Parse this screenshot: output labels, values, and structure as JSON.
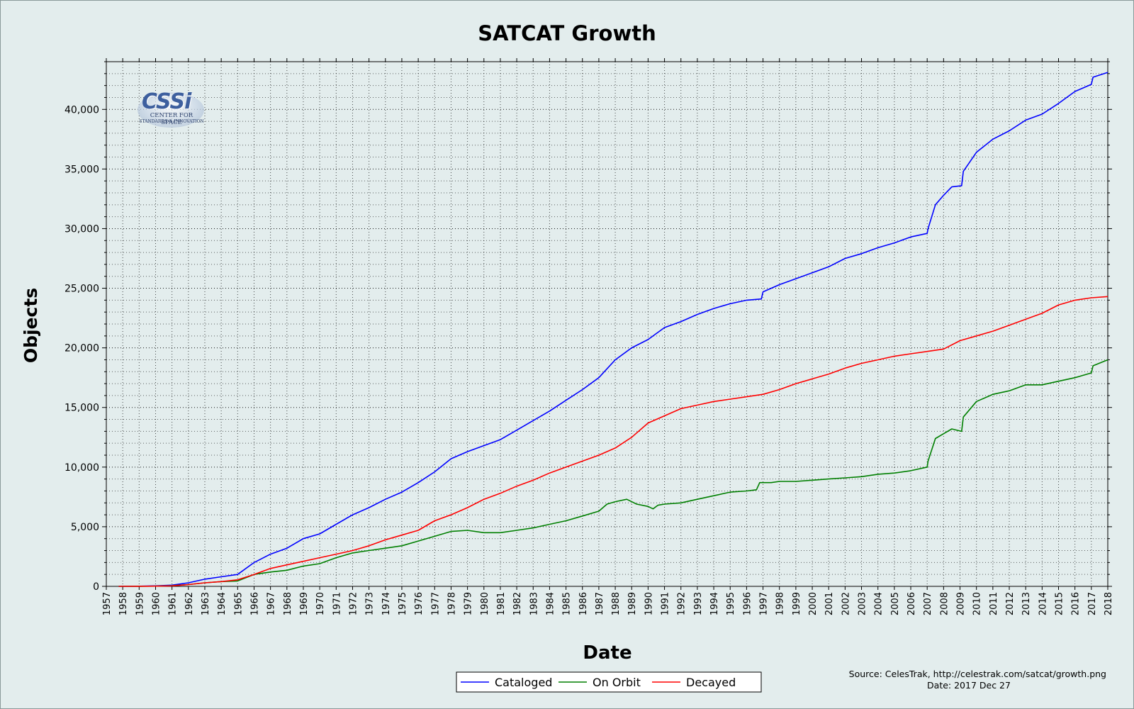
{
  "chart_data": {
    "type": "line",
    "title": "SATCAT Growth",
    "xlabel": "Date",
    "ylabel": "Objects",
    "xlim": [
      1957,
      2018
    ],
    "ylim": [
      0,
      44000
    ],
    "x_ticks": [
      1957,
      1958,
      1959,
      1960,
      1961,
      1962,
      1963,
      1964,
      1965,
      1966,
      1967,
      1968,
      1969,
      1970,
      1971,
      1972,
      1973,
      1974,
      1975,
      1976,
      1977,
      1978,
      1979,
      1980,
      1981,
      1982,
      1983,
      1984,
      1985,
      1986,
      1987,
      1988,
      1989,
      1990,
      1991,
      1992,
      1993,
      1994,
      1995,
      1996,
      1997,
      1998,
      1999,
      2000,
      2001,
      2002,
      2003,
      2004,
      2005,
      2006,
      2007,
      2008,
      2009,
      2010,
      2011,
      2012,
      2013,
      2014,
      2015,
      2016,
      2017,
      2018
    ],
    "y_ticks": [
      0,
      5000,
      10000,
      15000,
      20000,
      25000,
      30000,
      35000,
      40000
    ],
    "y_tick_labels": [
      "0",
      "5,000",
      "10,000",
      "15,000",
      "20,000",
      "25,000",
      "30,000",
      "35,000",
      "40,000"
    ],
    "grid": true,
    "legend_position": "bottom-center",
    "series": [
      {
        "name": "Cataloged",
        "color": "#0000ff",
        "points": [
          [
            1957.75,
            2
          ],
          [
            1959,
            10
          ],
          [
            1960,
            40
          ],
          [
            1961,
            100
          ],
          [
            1962,
            300
          ],
          [
            1963,
            600
          ],
          [
            1964,
            800
          ],
          [
            1965,
            1000
          ],
          [
            1966,
            2000
          ],
          [
            1967,
            2700
          ],
          [
            1968,
            3200
          ],
          [
            1969,
            4000
          ],
          [
            1970,
            4400
          ],
          [
            1971,
            5200
          ],
          [
            1972,
            6000
          ],
          [
            1973,
            6600
          ],
          [
            1974,
            7300
          ],
          [
            1975,
            7900
          ],
          [
            1976,
            8700
          ],
          [
            1977,
            9600
          ],
          [
            1978,
            10700
          ],
          [
            1979,
            11300
          ],
          [
            1980,
            11800
          ],
          [
            1981,
            12300
          ],
          [
            1982,
            13100
          ],
          [
            1983,
            13900
          ],
          [
            1984,
            14700
          ],
          [
            1985,
            15600
          ],
          [
            1986,
            16500
          ],
          [
            1987,
            17500
          ],
          [
            1988,
            19000
          ],
          [
            1989,
            20000
          ],
          [
            1990,
            20700
          ],
          [
            1991,
            21700
          ],
          [
            1992,
            22200
          ],
          [
            1993,
            22800
          ],
          [
            1994,
            23300
          ],
          [
            1995,
            23700
          ],
          [
            1996,
            24000
          ],
          [
            1996.9,
            24100
          ],
          [
            1997.0,
            24700
          ],
          [
            1998,
            25300
          ],
          [
            1999,
            25800
          ],
          [
            2000,
            26300
          ],
          [
            2001,
            26800
          ],
          [
            2002,
            27500
          ],
          [
            2003,
            27900
          ],
          [
            2004,
            28400
          ],
          [
            2005,
            28800
          ],
          [
            2006,
            29300
          ],
          [
            2007.0,
            29600
          ],
          [
            2007.05,
            30000
          ],
          [
            2007.5,
            32000
          ],
          [
            2008,
            32800
          ],
          [
            2008.5,
            33500
          ],
          [
            2009.1,
            33600
          ],
          [
            2009.2,
            34800
          ],
          [
            2010,
            36400
          ],
          [
            2011,
            37500
          ],
          [
            2012,
            38200
          ],
          [
            2013,
            39100
          ],
          [
            2014,
            39600
          ],
          [
            2015,
            40500
          ],
          [
            2016,
            41500
          ],
          [
            2017,
            42100
          ],
          [
            2017.1,
            42700
          ],
          [
            2018,
            43100
          ]
        ]
      },
      {
        "name": "On Orbit",
        "color": "#007f00",
        "points": [
          [
            1957.75,
            1
          ],
          [
            1959,
            5
          ],
          [
            1960,
            20
          ],
          [
            1961,
            60
          ],
          [
            1962,
            150
          ],
          [
            1963,
            300
          ],
          [
            1964,
            400
          ],
          [
            1965,
            450
          ],
          [
            1966,
            1000
          ],
          [
            1967,
            1200
          ],
          [
            1968,
            1350
          ],
          [
            1969,
            1700
          ],
          [
            1970,
            1900
          ],
          [
            1971,
            2400
          ],
          [
            1972,
            2800
          ],
          [
            1973,
            3000
          ],
          [
            1974,
            3200
          ],
          [
            1975,
            3400
          ],
          [
            1976,
            3800
          ],
          [
            1977,
            4200
          ],
          [
            1978,
            4600
          ],
          [
            1979,
            4700
          ],
          [
            1980,
            4500
          ],
          [
            1981,
            4500
          ],
          [
            1982,
            4700
          ],
          [
            1983,
            4900
          ],
          [
            1984,
            5200
          ],
          [
            1985,
            5500
          ],
          [
            1986,
            5900
          ],
          [
            1987,
            6300
          ],
          [
            1987.5,
            6900
          ],
          [
            1988,
            7100
          ],
          [
            1988.7,
            7300
          ],
          [
            1989.3,
            6900
          ],
          [
            1990,
            6700
          ],
          [
            1990.3,
            6500
          ],
          [
            1990.6,
            6800
          ],
          [
            1991,
            6900
          ],
          [
            1992,
            7000
          ],
          [
            1993,
            7300
          ],
          [
            1994,
            7600
          ],
          [
            1995,
            7900
          ],
          [
            1996,
            8000
          ],
          [
            1996.6,
            8100
          ],
          [
            1996.8,
            8700
          ],
          [
            1997.5,
            8700
          ],
          [
            1998,
            8800
          ],
          [
            1999,
            8800
          ],
          [
            2000,
            8900
          ],
          [
            2001,
            9000
          ],
          [
            2002,
            9100
          ],
          [
            2003,
            9200
          ],
          [
            2004,
            9400
          ],
          [
            2005,
            9500
          ],
          [
            2006,
            9700
          ],
          [
            2007.0,
            10000
          ],
          [
            2007.05,
            10500
          ],
          [
            2007.5,
            12400
          ],
          [
            2008,
            12800
          ],
          [
            2008.5,
            13200
          ],
          [
            2009.1,
            13000
          ],
          [
            2009.2,
            14200
          ],
          [
            2010,
            15500
          ],
          [
            2011,
            16100
          ],
          [
            2012,
            16400
          ],
          [
            2013,
            16900
          ],
          [
            2014,
            16900
          ],
          [
            2015,
            17200
          ],
          [
            2016,
            17500
          ],
          [
            2017,
            17900
          ],
          [
            2017.1,
            18500
          ],
          [
            2018,
            19000
          ]
        ]
      },
      {
        "name": "Decayed",
        "color": "#ff0000",
        "points": [
          [
            1957.75,
            1
          ],
          [
            1959,
            5
          ],
          [
            1960,
            20
          ],
          [
            1961,
            40
          ],
          [
            1962,
            150
          ],
          [
            1963,
            300
          ],
          [
            1964,
            400
          ],
          [
            1965,
            550
          ],
          [
            1966,
            1000
          ],
          [
            1967,
            1500
          ],
          [
            1968,
            1800
          ],
          [
            1969,
            2100
          ],
          [
            1970,
            2400
          ],
          [
            1971,
            2700
          ],
          [
            1972,
            3000
          ],
          [
            1973,
            3400
          ],
          [
            1974,
            3900
          ],
          [
            1975,
            4300
          ],
          [
            1976,
            4700
          ],
          [
            1977,
            5500
          ],
          [
            1978,
            6000
          ],
          [
            1979,
            6600
          ],
          [
            1980,
            7300
          ],
          [
            1981,
            7800
          ],
          [
            1982,
            8400
          ],
          [
            1983,
            8900
          ],
          [
            1984,
            9500
          ],
          [
            1985,
            10000
          ],
          [
            1986,
            10500
          ],
          [
            1987,
            11000
          ],
          [
            1988,
            11600
          ],
          [
            1989,
            12500
          ],
          [
            1990,
            13700
          ],
          [
            1991,
            14300
          ],
          [
            1992,
            14900
          ],
          [
            1993,
            15200
          ],
          [
            1994,
            15500
          ],
          [
            1995,
            15700
          ],
          [
            1996,
            15900
          ],
          [
            1997,
            16100
          ],
          [
            1998,
            16500
          ],
          [
            1999,
            17000
          ],
          [
            2000,
            17400
          ],
          [
            2001,
            17800
          ],
          [
            2002,
            18300
          ],
          [
            2003,
            18700
          ],
          [
            2004,
            19000
          ],
          [
            2005,
            19300
          ],
          [
            2006,
            19500
          ],
          [
            2007,
            19700
          ],
          [
            2008,
            19900
          ],
          [
            2009,
            20600
          ],
          [
            2010,
            21000
          ],
          [
            2011,
            21400
          ],
          [
            2012,
            21900
          ],
          [
            2013,
            22400
          ],
          [
            2014,
            22900
          ],
          [
            2015,
            23600
          ],
          [
            2016,
            24000
          ],
          [
            2017,
            24200
          ],
          [
            2018,
            24300
          ]
        ]
      }
    ]
  },
  "source_text": "Source: CelesTrak, http://celestrak.com/satcat/growth.png",
  "date_text": "Date: 2017 Dec 27",
  "logo": {
    "name": "cssi-logo",
    "text": "CSSi",
    "subtitle_line1": "CENTER FOR SPACE",
    "subtitle_line2": "STANDARDS & INNOVATION"
  },
  "colors": {
    "background": "#e3eded",
    "plot_background": "#e3eded",
    "axis": "#000000",
    "grid": "#000000"
  }
}
